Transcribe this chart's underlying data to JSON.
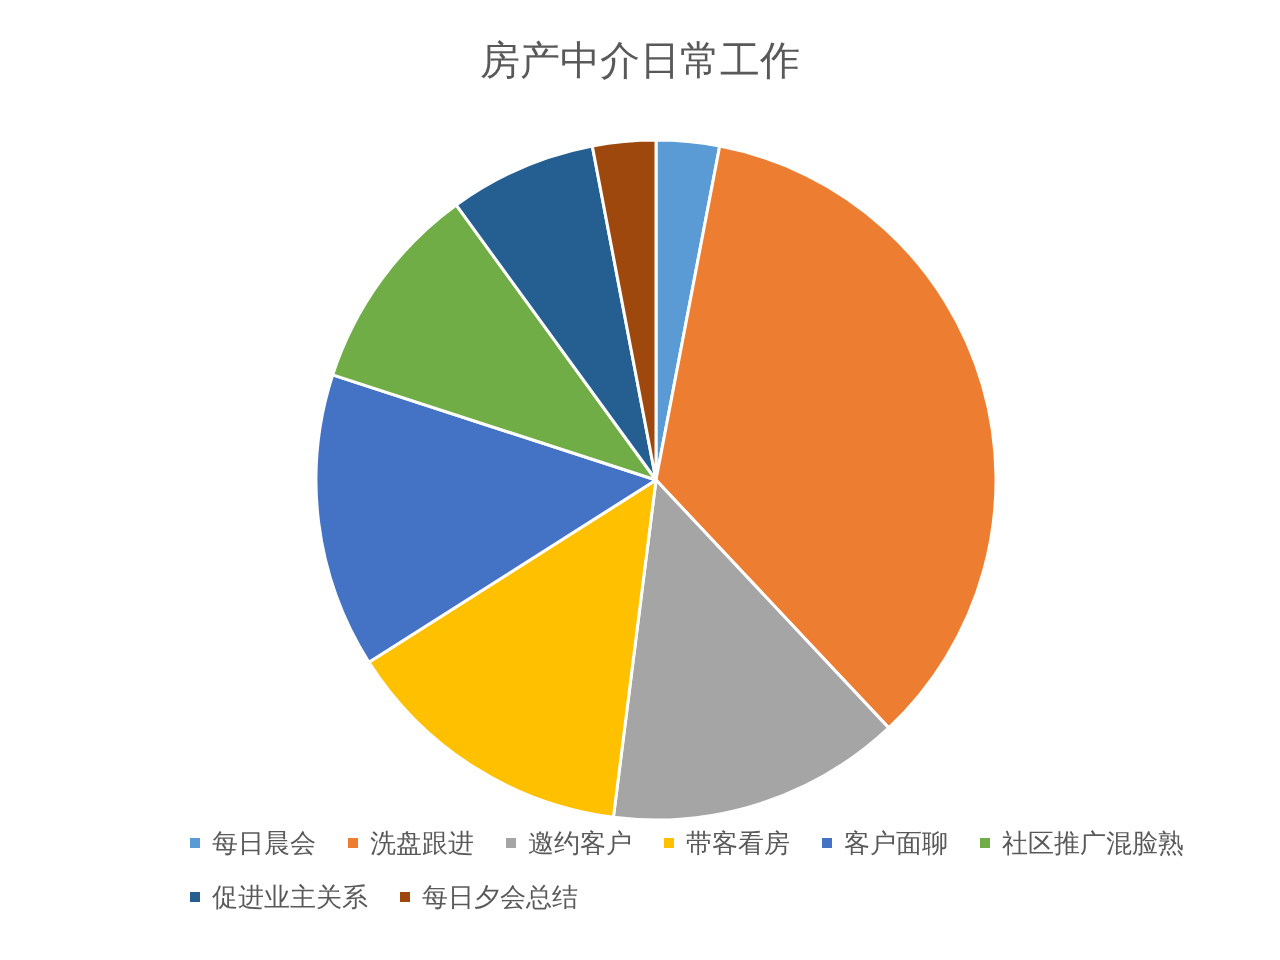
{
  "chart_data": {
    "type": "pie",
    "title": "房产中介日常工作",
    "categories": [
      "每日晨会",
      "洗盘跟进",
      "邀约客户",
      "带客看房",
      "客户面聊",
      "社区推广混脸熟",
      "促进业主关系",
      "每日夕会总结"
    ],
    "values": [
      3,
      35,
      14,
      14,
      14,
      10,
      7,
      3
    ],
    "colors": [
      "#5b9bd5",
      "#ed7d31",
      "#a5a5a5",
      "#ffc000",
      "#4472c4",
      "#70ad47",
      "#255e91",
      "#9e480e"
    ],
    "legend": "bottom"
  }
}
